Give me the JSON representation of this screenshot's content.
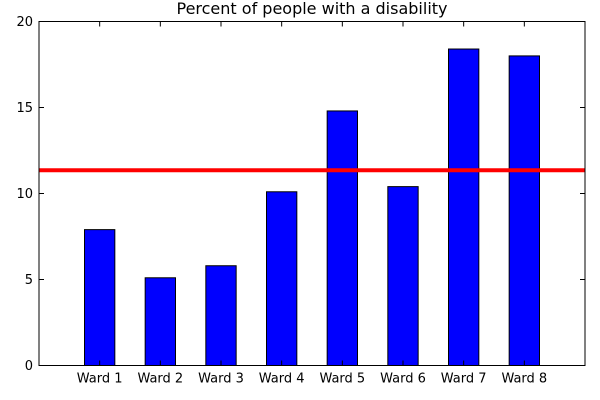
{
  "chart_data": {
    "type": "bar",
    "title": "Percent of people with a disability",
    "xlabel": "",
    "ylabel": "",
    "categories": [
      "Ward 1",
      "Ward 2",
      "Ward 3",
      "Ward 4",
      "Ward 5",
      "Ward 6",
      "Ward 7",
      "Ward 8"
    ],
    "values": [
      7.9,
      5.1,
      5.8,
      10.1,
      14.8,
      10.4,
      18.4,
      18.0
    ],
    "ylim": [
      0,
      20
    ],
    "yticks": [
      0,
      5,
      10,
      15,
      20
    ],
    "reference_line": {
      "value": 11.35,
      "color": "#ff0000"
    },
    "bar_color": "#0000ff",
    "bar_edge_color": "#000000",
    "grid": false,
    "legend": "none"
  }
}
